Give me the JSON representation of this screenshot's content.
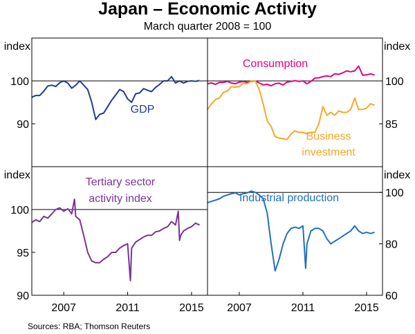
{
  "chart_data": {
    "type": "line",
    "title": "Japan – Economic Activity",
    "subtitle": "March quarter 2008 = 100",
    "source": "Sources:  RBA; Thomson Reuters",
    "x_range": [
      2005.0,
      2016.0
    ],
    "x_ticks": [
      "2007",
      "2011",
      "2015"
    ],
    "x_tick_values": [
      2007,
      2011,
      2015
    ],
    "panels": [
      {
        "id": "top-left",
        "axis_side": "left",
        "axis_label": "index",
        "ylim": [
          80,
          110
        ],
        "y_ticks": [
          90,
          100
        ],
        "reference_line": 100,
        "series": [
          {
            "name": "GDP",
            "label": "GDP",
            "color": "#1f3a93",
            "x": [
              2005.0,
              2005.25,
              2005.5,
              2005.75,
              2006.0,
              2006.25,
              2006.5,
              2006.75,
              2007.0,
              2007.25,
              2007.5,
              2007.75,
              2008.0,
              2008.25,
              2008.5,
              2008.75,
              2009.0,
              2009.25,
              2009.5,
              2009.75,
              2010.0,
              2010.25,
              2010.5,
              2010.75,
              2011.0,
              2011.25,
              2011.5,
              2011.75,
              2012.0,
              2012.25,
              2012.5,
              2012.75,
              2013.0,
              2013.25,
              2013.5,
              2013.75,
              2014.0,
              2014.25,
              2014.5,
              2014.75,
              2015.0,
              2015.25,
              2015.5
            ],
            "y": [
              96.2,
              96.6,
              96.6,
              97.6,
              98.8,
              99.0,
              98.7,
              99.6,
              100.0,
              99.5,
              98.3,
              99.0,
              100.0,
              99.0,
              98.0,
              95.0,
              91.0,
              92.2,
              92.5,
              94.0,
              95.5,
              96.7,
              98.0,
              97.5,
              95.8,
              95.0,
              97.0,
              97.2,
              98.2,
              97.8,
              97.5,
              98.5,
              99.2,
              100.0,
              100.0,
              101.0,
              99.5,
              100.0,
              99.5,
              99.9,
              100.0,
              99.9,
              100.1
            ]
          }
        ]
      },
      {
        "id": "top-right",
        "axis_side": "right",
        "axis_label": "index",
        "ylim": [
          70,
          115
        ],
        "y_ticks": [
          85,
          100
        ],
        "reference_line": 100,
        "series": [
          {
            "name": "Consumption",
            "label": "Consumption",
            "color": "#e6007e",
            "x": [
              2005.0,
              2005.25,
              2005.5,
              2005.75,
              2006.0,
              2006.25,
              2006.5,
              2006.75,
              2007.0,
              2007.25,
              2007.5,
              2007.75,
              2008.0,
              2008.25,
              2008.5,
              2008.75,
              2009.0,
              2009.25,
              2009.5,
              2009.75,
              2010.0,
              2010.25,
              2010.5,
              2010.75,
              2011.0,
              2011.25,
              2011.5,
              2011.75,
              2012.0,
              2012.25,
              2012.5,
              2012.75,
              2013.0,
              2013.25,
              2013.5,
              2013.75,
              2014.0,
              2014.25,
              2014.5,
              2014.75,
              2015.0,
              2015.25,
              2015.5
            ],
            "y": [
              99.0,
              99.3,
              98.8,
              99.5,
              99.5,
              99.8,
              99.3,
              99.0,
              99.6,
              99.8,
              99.5,
              99.8,
              100.0,
              99.3,
              98.6,
              98.8,
              98.3,
              99.0,
              99.2,
              98.6,
              99.6,
              99.8,
              100.1,
              99.8,
              100.0,
              99.0,
              99.8,
              101.0,
              101.1,
              101.5,
              101.8,
              101.5,
              102.5,
              102.3,
              102.8,
              103.5,
              103.2,
              103.5,
              105.2,
              102.0,
              102.1,
              102.5,
              102.0
            ]
          },
          {
            "name": "Business investment",
            "label": [
              "Business",
              "investment"
            ],
            "color": "#f7a823",
            "x": [
              2005.0,
              2005.25,
              2005.5,
              2005.75,
              2006.0,
              2006.25,
              2006.5,
              2006.75,
              2007.0,
              2007.25,
              2007.5,
              2007.75,
              2008.0,
              2008.25,
              2008.5,
              2008.75,
              2009.0,
              2009.25,
              2009.5,
              2009.75,
              2010.0,
              2010.25,
              2010.5,
              2010.75,
              2011.0,
              2011.25,
              2011.5,
              2011.75,
              2012.0,
              2012.25,
              2012.5,
              2012.75,
              2013.0,
              2013.25,
              2013.5,
              2013.75,
              2014.0,
              2014.25,
              2014.5,
              2014.75,
              2015.0,
              2015.25,
              2015.5
            ],
            "y": [
              90.0,
              92.0,
              93.5,
              94.0,
              96.0,
              96.5,
              98.0,
              97.8,
              98.0,
              99.2,
              99.0,
              100.0,
              100.0,
              97.0,
              92.0,
              86.0,
              84.0,
              80.5,
              80.0,
              79.8,
              79.5,
              81.5,
              82.5,
              82.0,
              82.0,
              81.5,
              82.0,
              82.0,
              85.0,
              91.0,
              88.0,
              89.0,
              88.0,
              89.5,
              89.0,
              89.0,
              90.0,
              94.0,
              90.0,
              90.0,
              90.5,
              92.0,
              91.5
            ]
          }
        ]
      },
      {
        "id": "bottom-left",
        "axis_side": "left",
        "axis_label": "index",
        "ylim": [
          90,
          105
        ],
        "y_ticks": [
          90,
          95,
          100
        ],
        "reference_line": 100,
        "series": [
          {
            "name": "Tertiary sector activity index",
            "label": [
              "Tertiary sector",
              "activity index"
            ],
            "color": "#7b3294",
            "x": [
              2005.0,
              2005.25,
              2005.5,
              2005.75,
              2006.0,
              2006.25,
              2006.5,
              2006.75,
              2007.0,
              2007.25,
              2007.5,
              2007.67,
              2007.75,
              2008.0,
              2008.25,
              2008.5,
              2008.75,
              2009.0,
              2009.25,
              2009.5,
              2009.75,
              2010.0,
              2010.25,
              2010.5,
              2010.75,
              2011.0,
              2011.17,
              2011.25,
              2011.5,
              2011.75,
              2012.0,
              2012.25,
              2012.5,
              2012.75,
              2013.0,
              2013.25,
              2013.5,
              2013.75,
              2014.0,
              2014.17,
              2014.25,
              2014.33,
              2014.5,
              2014.75,
              2015.0,
              2015.25,
              2015.5
            ],
            "y": [
              98.5,
              98.8,
              98.6,
              99.2,
              99.0,
              99.5,
              100.0,
              100.2,
              99.8,
              100.1,
              99.5,
              101.2,
              99.2,
              98.8,
              97.0,
              95.0,
              94.0,
              93.8,
              93.8,
              94.2,
              94.5,
              95.0,
              95.0,
              95.5,
              95.8,
              96.0,
              91.7,
              95.5,
              96.2,
              96.5,
              96.8,
              97.0,
              97.0,
              97.4,
              97.5,
              97.8,
              98.0,
              98.6,
              98.2,
              99.8,
              96.4,
              97.0,
              97.5,
              97.8,
              98.0,
              98.4,
              98.2
            ]
          }
        ]
      },
      {
        "id": "bottom-right",
        "axis_side": "right",
        "axis_label": "index",
        "ylim": [
          60,
          110
        ],
        "y_ticks": [
          60,
          80,
          100
        ],
        "reference_line": 100,
        "series": [
          {
            "name": "Industrial production",
            "label": "Industrial production",
            "color": "#1f6fbf",
            "x": [
              2005.0,
              2005.25,
              2005.5,
              2005.75,
              2006.0,
              2006.25,
              2006.5,
              2006.75,
              2007.0,
              2007.25,
              2007.5,
              2007.75,
              2008.0,
              2008.25,
              2008.5,
              2008.75,
              2009.0,
              2009.25,
              2009.5,
              2009.75,
              2010.0,
              2010.25,
              2010.5,
              2010.75,
              2011.0,
              2011.17,
              2011.25,
              2011.5,
              2011.75,
              2012.0,
              2012.25,
              2012.5,
              2012.75,
              2013.0,
              2013.25,
              2013.5,
              2013.75,
              2014.0,
              2014.25,
              2014.5,
              2014.75,
              2015.0,
              2015.25,
              2015.5
            ],
            "y": [
              96.0,
              96.5,
              97.0,
              97.5,
              98.5,
              99.0,
              99.5,
              99.8,
              99.0,
              99.5,
              99.8,
              100.5,
              100.0,
              99.0,
              97.5,
              92.0,
              80.0,
              69.5,
              74.0,
              80.0,
              84.0,
              86.0,
              86.5,
              86.0,
              87.0,
              70.5,
              80.0,
              85.0,
              86.0,
              86.0,
              85.0,
              82.0,
              80.0,
              81.0,
              82.0,
              83.0,
              84.0,
              85.0,
              87.0,
              85.0,
              84.0,
              84.5,
              84.0,
              84.5
            ]
          }
        ]
      }
    ]
  }
}
